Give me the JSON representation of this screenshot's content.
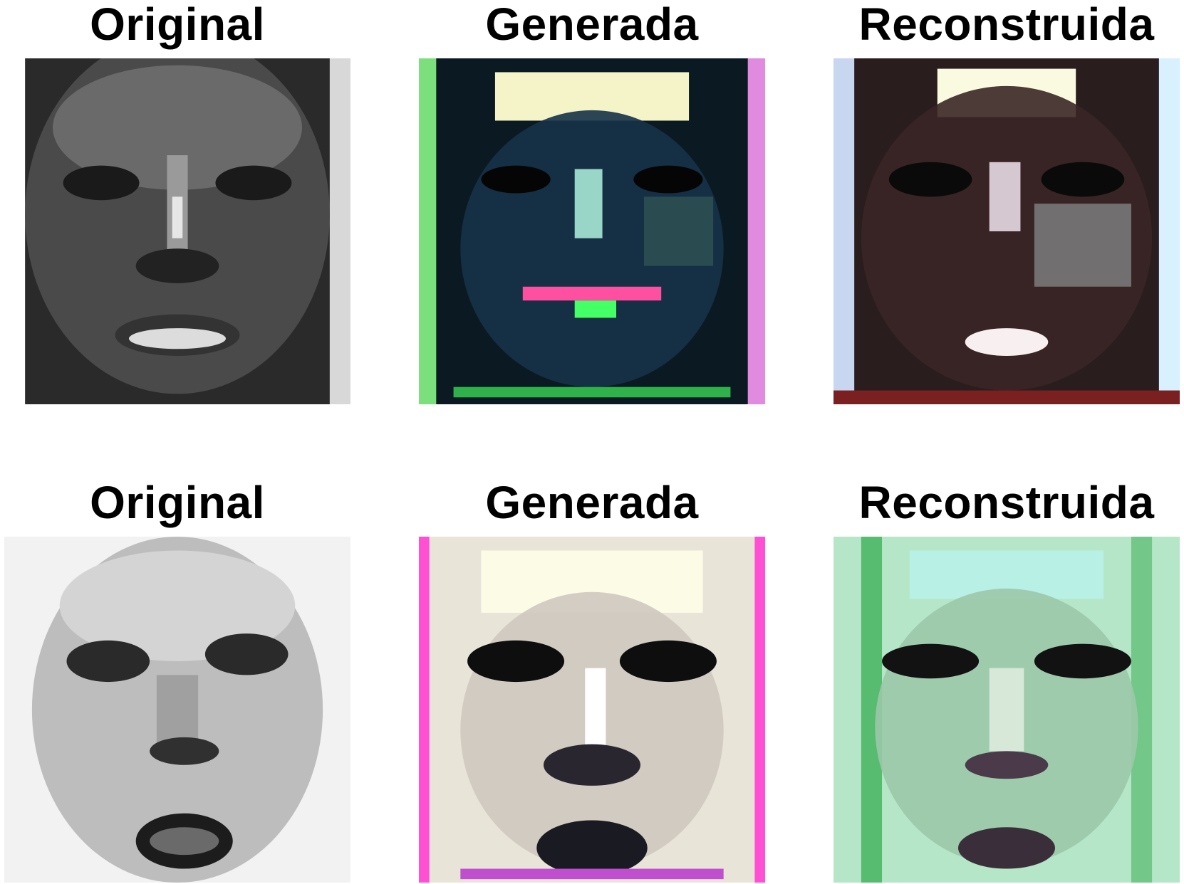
{
  "figure": {
    "rows": [
      {
        "panels": [
          {
            "title": "Original",
            "kind": "grayscale",
            "subject": "face-1"
          },
          {
            "title": "Generada",
            "kind": "color-noise",
            "subject": "face-1"
          },
          {
            "title": "Reconstruida",
            "kind": "color-noise",
            "subject": "face-1"
          }
        ]
      },
      {
        "panels": [
          {
            "title": "Original",
            "kind": "grayscale",
            "subject": "face-2"
          },
          {
            "title": "Generada",
            "kind": "color-noise",
            "subject": "face-2"
          },
          {
            "title": "Reconstruida",
            "kind": "color-noise",
            "subject": "face-2"
          }
        ]
      }
    ]
  }
}
